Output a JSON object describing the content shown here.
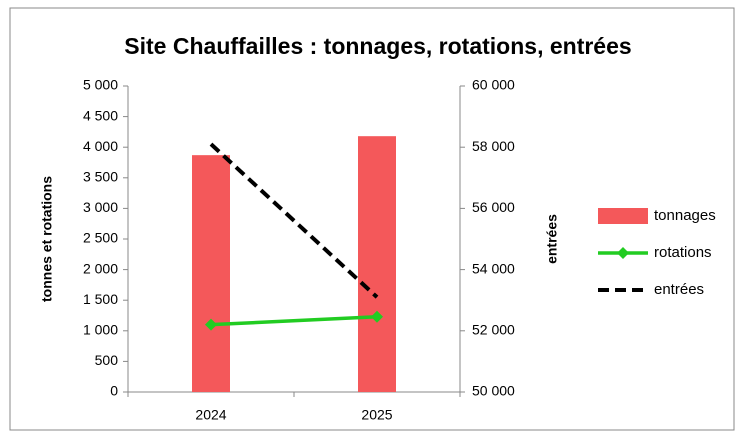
{
  "chart_data": {
    "type": "combo",
    "title": "Site Chauffailles : tonnages, rotations, entrées",
    "categories": [
      "2024",
      "2025"
    ],
    "series": [
      {
        "name": "tonnages",
        "type": "bar",
        "color": "#f4585a",
        "values": [
          3870,
          4180
        ]
      },
      {
        "name": "rotations",
        "type": "line",
        "marker": "diamond",
        "color": "#22cc22",
        "values": [
          1100,
          1230
        ]
      },
      {
        "name": "entrées",
        "type": "line",
        "dashed": true,
        "color": "#000000",
        "axis": "y2",
        "values": [
          58100,
          53100
        ]
      }
    ],
    "ylabel": "tonnes et rotations",
    "y2label": "entrées",
    "ylim": [
      0,
      5000
    ],
    "yticks": [
      0,
      500,
      {
        "value": 1000,
        "label": "1 000"
      },
      {
        "value": 1500,
        "label": "1 500"
      },
      {
        "value": 2000,
        "label": "2 000"
      },
      {
        "value": 2500,
        "label": "2 500"
      },
      {
        "value": 3000,
        "label": "3 000"
      },
      {
        "value": 3500,
        "label": "3 500"
      },
      {
        "value": 4000,
        "label": "4 000"
      },
      {
        "value": 4500,
        "label": "4 500"
      },
      {
        "value": 5000,
        "label": "5 000"
      }
    ],
    "y2lim": [
      50000,
      60000
    ],
    "y2ticks": [
      {
        "value": 50000,
        "label": "50 000"
      },
      {
        "value": 52000,
        "label": "52 000"
      },
      {
        "value": 54000,
        "label": "54 000"
      },
      {
        "value": 56000,
        "label": "56 000"
      },
      {
        "value": 58000,
        "label": "58 000"
      },
      {
        "value": 60000,
        "label": "60 000"
      }
    ],
    "legend": "right"
  }
}
